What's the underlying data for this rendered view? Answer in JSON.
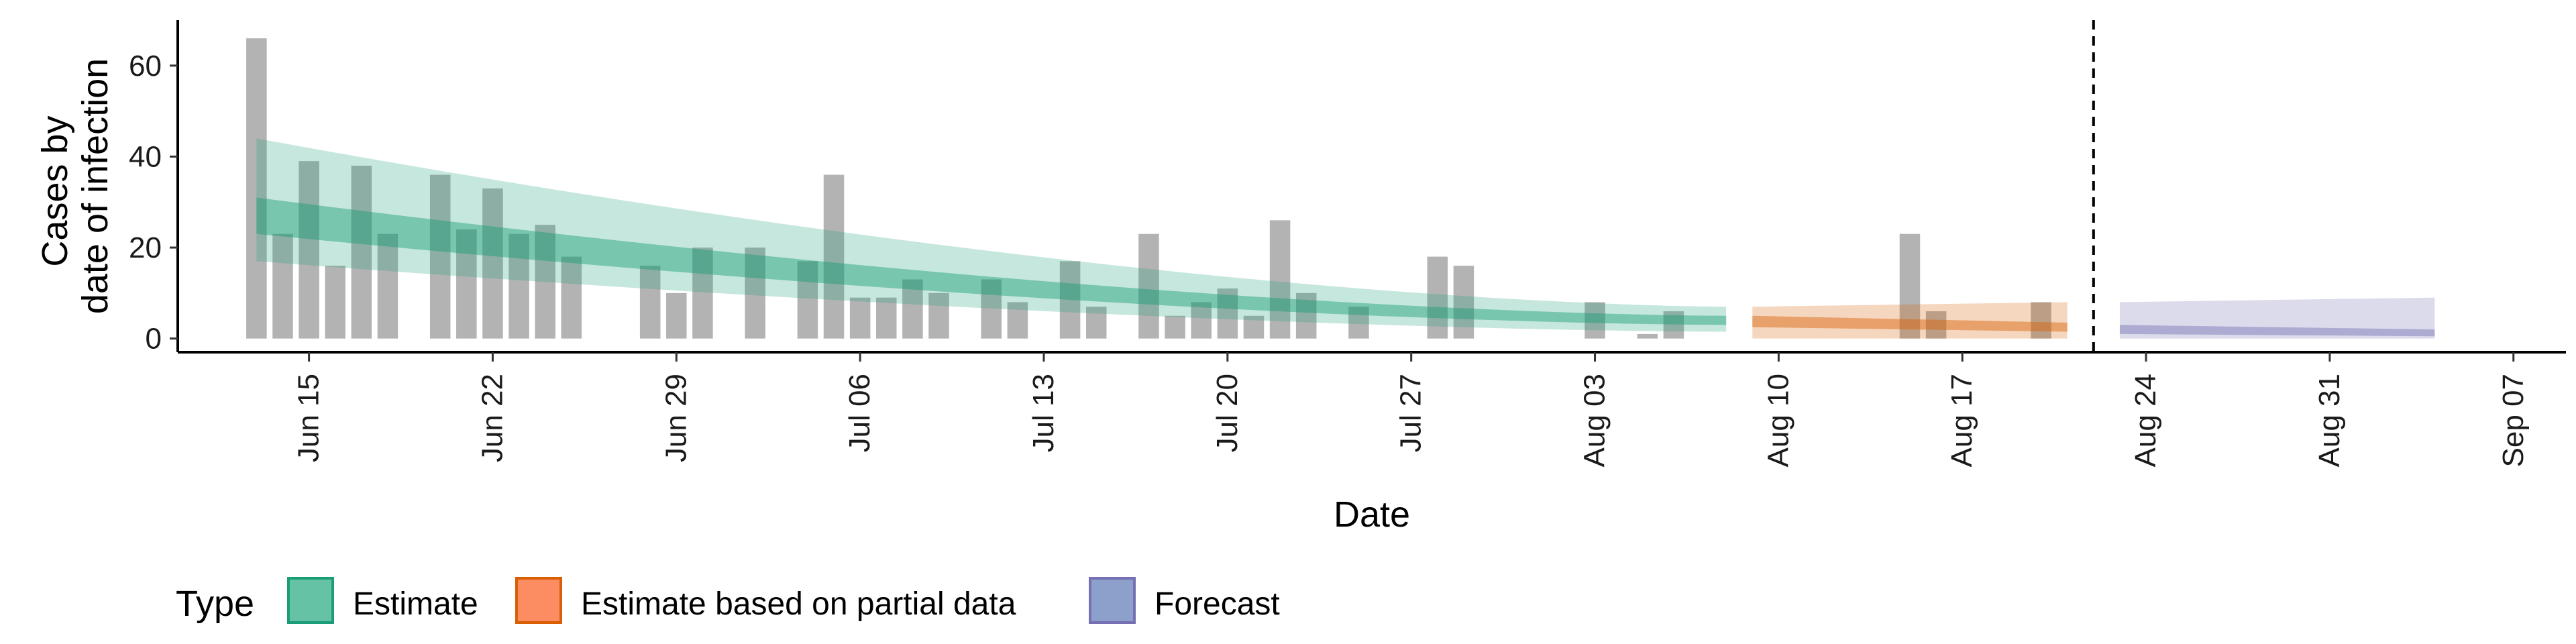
{
  "chart_data": {
    "type": "bar+area",
    "title": "",
    "xlabel": "Date",
    "ylabel_lines": [
      "Cases by",
      "date of infection"
    ],
    "ylim": [
      -3,
      70
    ],
    "y_ticks": [
      0,
      20,
      40,
      60
    ],
    "x_range": [
      "2020-06-10",
      "2020-09-09"
    ],
    "x_ticks": [
      {
        "date": "2020-06-15",
        "label": "Jun 15"
      },
      {
        "date": "2020-06-22",
        "label": "Jun 22"
      },
      {
        "date": "2020-06-29",
        "label": "Jun 29"
      },
      {
        "date": "2020-07-06",
        "label": "Jul 06"
      },
      {
        "date": "2020-07-13",
        "label": "Jul 13"
      },
      {
        "date": "2020-07-20",
        "label": "Jul 20"
      },
      {
        "date": "2020-07-27",
        "label": "Jul 27"
      },
      {
        "date": "2020-08-03",
        "label": "Aug 03"
      },
      {
        "date": "2020-08-10",
        "label": "Aug 10"
      },
      {
        "date": "2020-08-17",
        "label": "Aug 17"
      },
      {
        "date": "2020-08-24",
        "label": "Aug 24"
      },
      {
        "date": "2020-08-31",
        "label": "Aug 31"
      },
      {
        "date": "2020-09-07",
        "label": "Sep 07"
      }
    ],
    "forecast_start_line": "2020-08-22",
    "bar_color": "#b3b3b3",
    "observed_cases": {
      "start_date": "2020-06-13",
      "values": [
        66,
        23,
        39,
        16,
        38,
        23,
        0,
        36,
        24,
        33,
        23,
        25,
        18,
        0,
        0,
        16,
        10,
        20,
        0,
        20,
        0,
        17,
        36,
        9,
        9,
        13,
        10,
        0,
        13,
        8,
        0,
        17,
        7,
        0,
        23,
        5,
        8,
        11,
        5,
        26,
        10,
        0,
        7,
        0,
        0,
        18,
        16,
        0,
        0,
        0,
        0,
        8,
        0,
        1,
        6,
        0,
        0,
        0,
        0,
        0,
        0,
        0,
        0,
        23,
        6,
        0,
        0,
        0,
        8,
        0
      ]
    },
    "series": [
      {
        "name": "Estimate",
        "color": "#1b9e77",
        "fill": "#66c2a5",
        "start_date": "2020-06-13",
        "end_date": "2020-08-08",
        "median": [
          30,
          4
        ],
        "inner": [
          [
            23,
            3
          ],
          [
            31,
            5
          ]
        ],
        "outer": [
          [
            17,
            1.5
          ],
          [
            44,
            7
          ]
        ]
      },
      {
        "name": "Estimate based on partial data",
        "color": "#d95f02",
        "fill": "#fc8d62",
        "start_date": "2020-08-09",
        "end_date": "2020-08-21",
        "median": [
          4,
          2.5
        ],
        "inner": [
          [
            2.5,
            1.5
          ],
          [
            5,
            3.5
          ]
        ],
        "outer": [
          [
            0,
            0
          ],
          [
            7,
            8
          ]
        ]
      },
      {
        "name": "Forecast",
        "color": "#7570b3",
        "fill": "#8da0cb",
        "start_date": "2020-08-23",
        "end_date": "2020-09-04",
        "median": [
          2,
          1.5
        ],
        "inner": [
          [
            1,
            0.5
          ],
          [
            3,
            2
          ]
        ],
        "outer": [
          [
            0,
            0
          ],
          [
            8,
            9
          ]
        ]
      }
    ],
    "legend": {
      "title": "Type",
      "position": "bottom",
      "items": [
        "Estimate",
        "Estimate based on partial data",
        "Forecast"
      ]
    }
  }
}
